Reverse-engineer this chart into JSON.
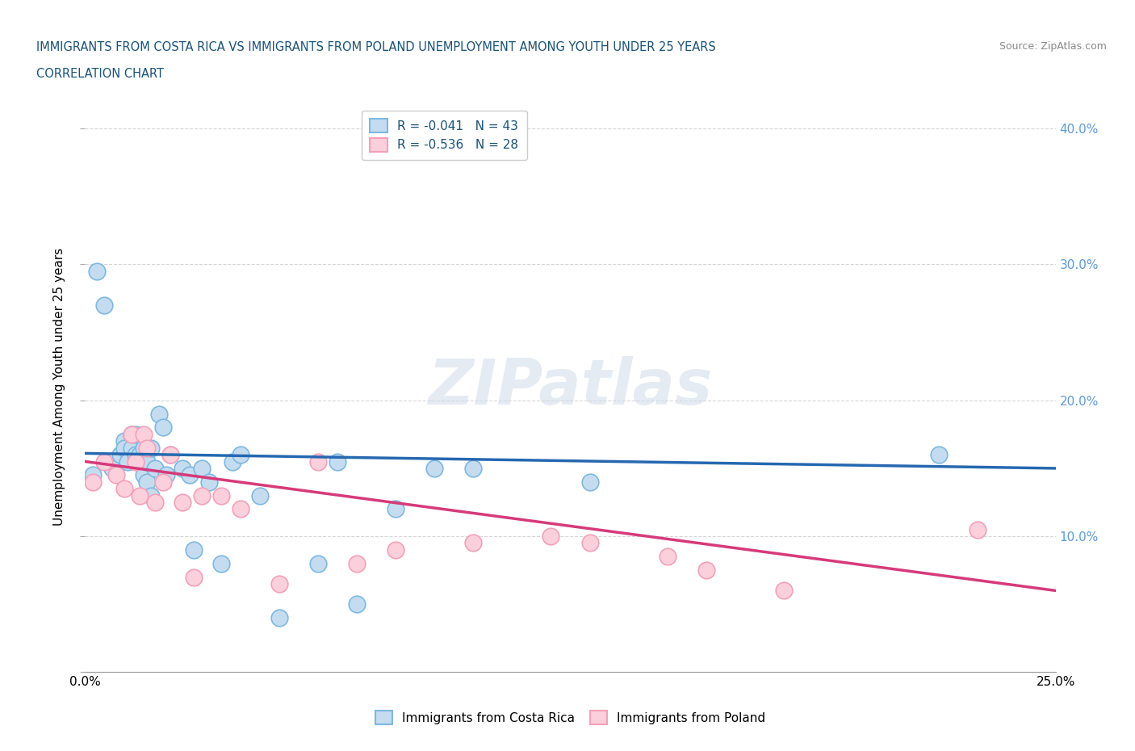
{
  "title_line1": "IMMIGRANTS FROM COSTA RICA VS IMMIGRANTS FROM POLAND UNEMPLOYMENT AMONG YOUTH UNDER 25 YEARS",
  "title_line2": "CORRELATION CHART",
  "source": "Source: ZipAtlas.com",
  "ylabel": "Unemployment Among Youth under 25 years",
  "xlim": [
    0.0,
    0.25
  ],
  "ylim": [
    0.0,
    0.42
  ],
  "ytick_positions": [
    0.0,
    0.1,
    0.2,
    0.3,
    0.4
  ],
  "ytick_labels_right": [
    "",
    "10.0%",
    "20.0%",
    "30.0%",
    "40.0%"
  ],
  "xtick_positions": [
    0.0,
    0.05,
    0.1,
    0.15,
    0.2,
    0.25
  ],
  "xtick_labels": [
    "0.0%",
    "",
    "",
    "",
    "",
    "25.0%"
  ],
  "legend_label1": "R = -0.041   N = 43",
  "legend_label2": "R = -0.536   N = 28",
  "bottom_legend1": "Immigrants from Costa Rica",
  "bottom_legend2": "Immigrants from Poland",
  "blue_marker_face": "#c5dcf0",
  "blue_marker_edge": "#7db8e0",
  "pink_marker_face": "#fbd0dc",
  "pink_marker_edge": "#f4a0b8",
  "line_blue": "#2568b0",
  "line_pink": "#d63a7a",
  "title_color": "#1a5276",
  "axis_color_right": "#5b9bd5",
  "watermark_text": "ZIPatlas",
  "costa_rica_x": [
    0.002,
    0.003,
    0.005,
    0.007,
    0.009,
    0.01,
    0.01,
    0.011,
    0.012,
    0.012,
    0.013,
    0.013,
    0.014,
    0.014,
    0.015,
    0.015,
    0.016,
    0.016,
    0.017,
    0.017,
    0.018,
    0.019,
    0.02,
    0.021,
    0.022,
    0.025,
    0.027,
    0.028,
    0.03,
    0.032,
    0.035,
    0.038,
    0.04,
    0.045,
    0.05,
    0.06,
    0.065,
    0.07,
    0.08,
    0.09,
    0.1,
    0.13,
    0.22
  ],
  "costa_rica_y": [
    0.145,
    0.295,
    0.27,
    0.15,
    0.16,
    0.17,
    0.165,
    0.155,
    0.175,
    0.165,
    0.16,
    0.175,
    0.155,
    0.16,
    0.145,
    0.165,
    0.14,
    0.155,
    0.165,
    0.13,
    0.15,
    0.19,
    0.18,
    0.145,
    0.16,
    0.15,
    0.145,
    0.09,
    0.15,
    0.14,
    0.08,
    0.155,
    0.16,
    0.13,
    0.04,
    0.08,
    0.155,
    0.05,
    0.12,
    0.15,
    0.15,
    0.14,
    0.16
  ],
  "poland_x": [
    0.002,
    0.005,
    0.008,
    0.01,
    0.012,
    0.013,
    0.014,
    0.015,
    0.016,
    0.018,
    0.02,
    0.022,
    0.025,
    0.028,
    0.03,
    0.035,
    0.04,
    0.05,
    0.06,
    0.07,
    0.08,
    0.1,
    0.12,
    0.13,
    0.15,
    0.16,
    0.18,
    0.23
  ],
  "poland_y": [
    0.14,
    0.155,
    0.145,
    0.135,
    0.175,
    0.155,
    0.13,
    0.175,
    0.165,
    0.125,
    0.14,
    0.16,
    0.125,
    0.07,
    0.13,
    0.13,
    0.12,
    0.065,
    0.155,
    0.08,
    0.09,
    0.095,
    0.1,
    0.095,
    0.085,
    0.075,
    0.06,
    0.105
  ],
  "cr_line_x0": 0.0,
  "cr_line_x1": 0.25,
  "cr_line_y0": 0.161,
  "cr_line_y1": 0.15,
  "pl_line_x0": 0.0,
  "pl_line_x1": 0.25,
  "pl_line_y0": 0.155,
  "pl_line_y1": 0.06
}
